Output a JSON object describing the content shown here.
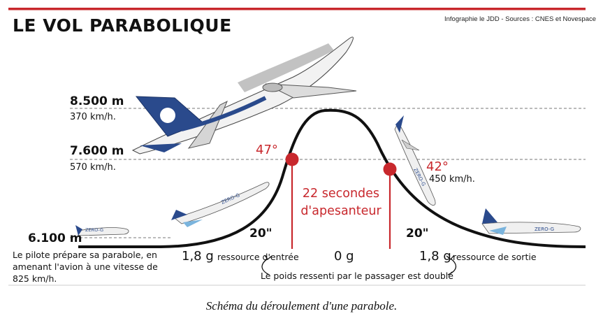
{
  "title": "LE VOL PARABOLIQUE",
  "credit": "Infographie le JDD - Sources : CNES et Novespace",
  "altitudes": [
    {
      "alt": "8.500 m",
      "speed": "370 km/h."
    },
    {
      "alt": "7.600 m",
      "speed": "570 km/h."
    },
    {
      "alt": "6.100 m",
      "speed": ""
    }
  ],
  "angles": {
    "entry": "47°",
    "exit": "42°",
    "exit_speed": "450 km/h."
  },
  "weightless": {
    "line1": "22 secondes",
    "line2": "d'apesanteur"
  },
  "phases": {
    "entry_duration": "20\"",
    "exit_duration": "20\"",
    "entry_g": "1,8 g",
    "entry_label": "ressource d'entrée",
    "zero_g": "0 g",
    "exit_g": "1,8 g",
    "exit_label": "ressource de sortie"
  },
  "doubled_note": "Le poids ressenti par le passager est doublé",
  "pilot_note": "Le pilote prépare sa parabole, en amenant l'avion à une vitesse de 825 km/h.",
  "plane_marking": "ZERO-G",
  "caption": "Schéma du déroulement d'une parabole.",
  "colors": {
    "accent_red": "#c8282d",
    "curve": "#111111",
    "plane_blue": "#2a4a8c",
    "dashed": "#777777"
  }
}
